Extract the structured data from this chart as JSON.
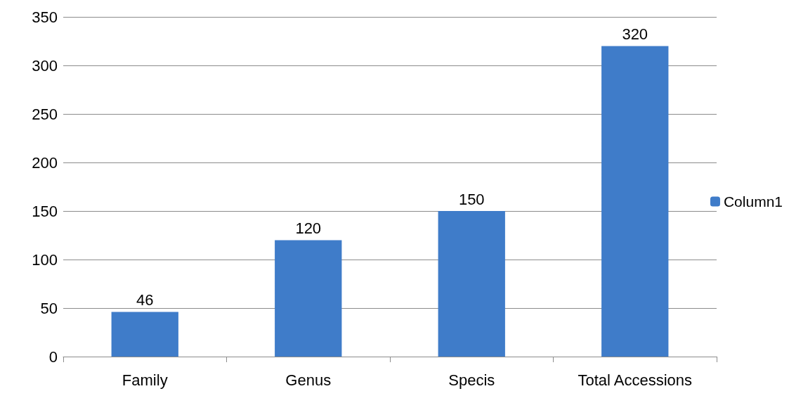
{
  "chart_data": {
    "type": "bar",
    "categories": [
      "Family",
      "Genus",
      "Specis",
      "Total Accessions"
    ],
    "series": [
      {
        "name": "Column1",
        "color": "#3f7cc9",
        "values": [
          46,
          120,
          150,
          320
        ]
      }
    ],
    "ylim": [
      0,
      350
    ],
    "yticks": [
      0,
      50,
      100,
      150,
      200,
      250,
      300,
      350
    ],
    "grid": "y",
    "legend": "right",
    "data_labels": true
  }
}
